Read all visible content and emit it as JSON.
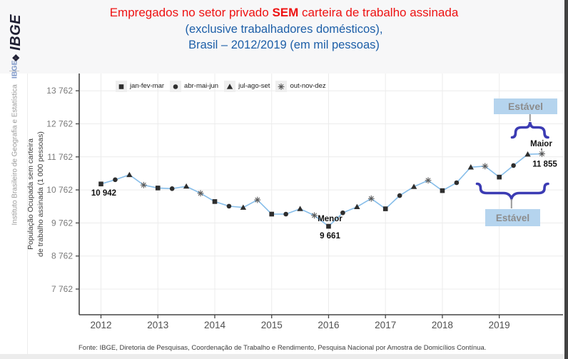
{
  "header": {
    "logo": "IBGE",
    "title": {
      "line1_prefix": "Empregados no setor privado ",
      "line1_emphasis": "SEM",
      "line1_suffix": " carteira de trabalho assinada",
      "line2": "(exclusive trabalhadores domésticos),",
      "line3": "Brasil – 2012/2019 (em mil pessoas)"
    }
  },
  "sidebar": {
    "institute_name": "Instituto Brasileiro de Geografia e Estatística",
    "acronym": "IBGE"
  },
  "footer": {
    "source": "Fonte: IBGE, Diretoria de Pesquisas, Coordenação de Trabalho e Rendimento, Pesquisa Nacional por Amostra de Domicílios Contínua."
  },
  "colors": {
    "title_red": "#ee1111",
    "title_blue": "#1d5fa8",
    "line_blue": "#86bde9",
    "marker_dark": "#2e2e2e",
    "asterisk_gray": "#5a5a5a",
    "brace_blue": "#3b3bb3",
    "connector_gray": "#9a9a9a",
    "stable_box_bg": "#b5d4ee",
    "stable_text": "#8c8c8c",
    "axis_color": "#454545",
    "grid_color": "#ececec",
    "tick_label_gray": "#7a7a7a",
    "year_label_gray": "#505050",
    "header_bg": "#f7f7f8",
    "sidebar_name_gray": "#9b9b9b",
    "sidebar_acronym_blue": "#7d97c8",
    "logo_navy": "#1e1e32",
    "footer_text": "#3c3c3c",
    "strip_gray": "#ececec",
    "right_edge_dark": "#424242"
  },
  "chart_data": {
    "type": "line",
    "title": "Empregados no setor privado SEM carteira de trabalho assinada, Brasil 2012/2019 (em mil pessoas)",
    "legend": [
      {
        "marker": "square",
        "label": "jan-fev-mar"
      },
      {
        "marker": "circle",
        "label": "abr-mai-jun"
      },
      {
        "marker": "triangle",
        "label": "jul-ago-set"
      },
      {
        "marker": "asterisk",
        "label": "out-nov-dez"
      }
    ],
    "y_axis": {
      "title_line1": "População Ocupada sem carteira",
      "title_line2": "de trabalho assinada (1 000 pessoas)",
      "tick_values": [
        7762,
        8762,
        9762,
        10762,
        11762,
        12762,
        13762
      ],
      "tick_labels": [
        "7 762",
        "8 762",
        "9 762",
        "10 762",
        "11 762",
        "12 762",
        "13 762"
      ]
    },
    "x_axis": {
      "years": [
        "2012",
        "2013",
        "2014",
        "2015",
        "2016",
        "2017",
        "2018",
        "2019"
      ]
    },
    "points": [
      {
        "year": 2012,
        "period": "jan-fev-mar",
        "value": 10942
      },
      {
        "year": 2012,
        "period": "abr-mai-jun",
        "value": 11070
      },
      {
        "year": 2012,
        "period": "jul-ago-set",
        "value": 11220
      },
      {
        "year": 2012,
        "period": "out-nov-dez",
        "value": 10910
      },
      {
        "year": 2013,
        "period": "jan-fev-mar",
        "value": 10820
      },
      {
        "year": 2013,
        "period": "abr-mai-jun",
        "value": 10800
      },
      {
        "year": 2013,
        "period": "jul-ago-set",
        "value": 10870
      },
      {
        "year": 2013,
        "period": "out-nov-dez",
        "value": 10660
      },
      {
        "year": 2014,
        "period": "jan-fev-mar",
        "value": 10410
      },
      {
        "year": 2014,
        "period": "abr-mai-jun",
        "value": 10270
      },
      {
        "year": 2014,
        "period": "jul-ago-set",
        "value": 10230
      },
      {
        "year": 2014,
        "period": "out-nov-dez",
        "value": 10460
      },
      {
        "year": 2015,
        "period": "jan-fev-mar",
        "value": 10030
      },
      {
        "year": 2015,
        "period": "abr-mai-jun",
        "value": 10030
      },
      {
        "year": 2015,
        "period": "jul-ago-set",
        "value": 10190
      },
      {
        "year": 2015,
        "period": "out-nov-dez",
        "value": 9990
      },
      {
        "year": 2016,
        "period": "jan-fev-mar",
        "value": 9661
      },
      {
        "year": 2016,
        "period": "abr-mai-jun",
        "value": 10070
      },
      {
        "year": 2016,
        "period": "jul-ago-set",
        "value": 10250
      },
      {
        "year": 2016,
        "period": "out-nov-dez",
        "value": 10500
      },
      {
        "year": 2017,
        "period": "jan-fev-mar",
        "value": 10190
      },
      {
        "year": 2017,
        "period": "abr-mai-jun",
        "value": 10590
      },
      {
        "year": 2017,
        "period": "jul-ago-set",
        "value": 10860
      },
      {
        "year": 2017,
        "period": "out-nov-dez",
        "value": 11050
      },
      {
        "year": 2018,
        "period": "jan-fev-mar",
        "value": 10740
      },
      {
        "year": 2018,
        "period": "abr-mai-jun",
        "value": 10980
      },
      {
        "year": 2018,
        "period": "jul-ago-set",
        "value": 11450
      },
      {
        "year": 2018,
        "period": "out-nov-dez",
        "value": 11480
      },
      {
        "year": 2019,
        "period": "jan-fev-mar",
        "value": 11150
      },
      {
        "year": 2019,
        "period": "abr-mai-jun",
        "value": 11500
      },
      {
        "year": 2019,
        "period": "jul-ago-set",
        "value": 11840
      },
      {
        "year": 2019,
        "period": "out-nov-dez",
        "value": 11855
      }
    ],
    "annotations": {
      "first_point": {
        "value": 10942,
        "label": "10 942"
      },
      "min": {
        "name": "Menor",
        "value": 9661,
        "label": "9 661"
      },
      "max": {
        "name": "Maior",
        "value": 11855,
        "label": "11 855"
      },
      "stable_top": {
        "label": "Estável"
      },
      "stable_bottom": {
        "label": "Estável"
      }
    }
  }
}
